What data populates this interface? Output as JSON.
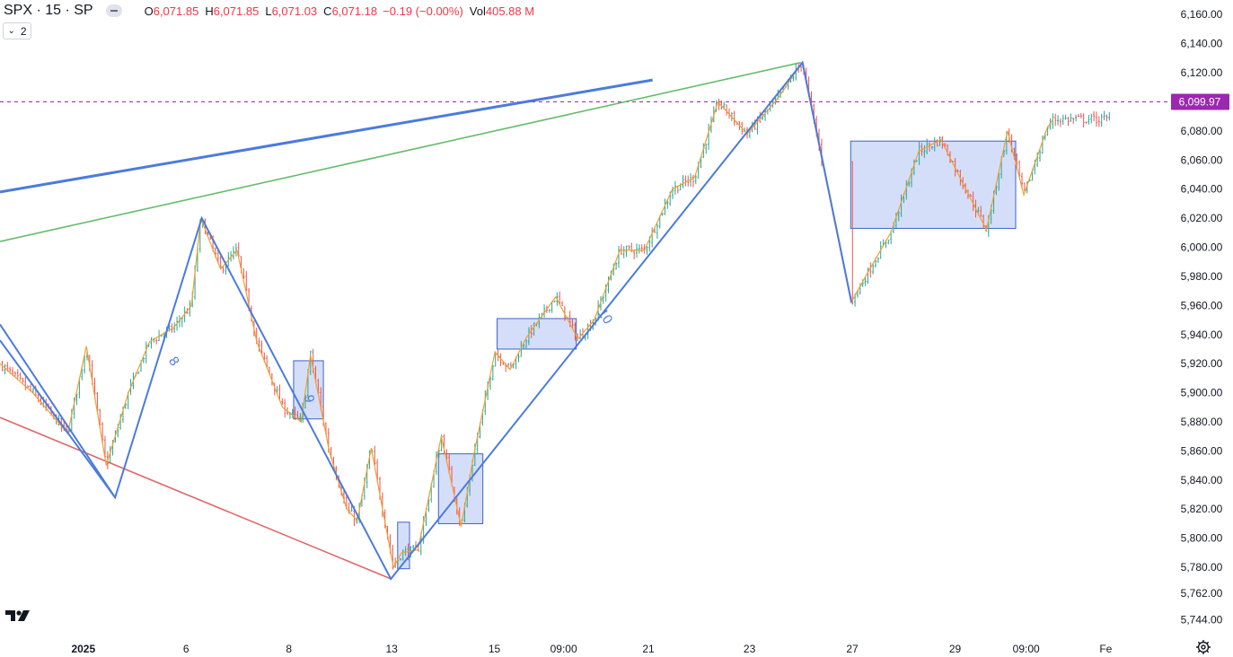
{
  "legend": {
    "symbol": "SPX · 15 · SP",
    "o_label": "O",
    "o_value": "6,071.85",
    "h_label": "H",
    "h_value": "6,071.85",
    "l_label": "L",
    "l_value": "6,071.03",
    "c_label": "C",
    "c_value": "6,071.18",
    "change": "−0.19 (−0.00%)",
    "vol_label": "Vol",
    "vol_value": "405.88 M"
  },
  "indicator_count": "2",
  "price_label": "6,099.97",
  "colors": {
    "up": "#26a69a",
    "down": "#ef5350",
    "zigzag_blue": "#4b7bdc",
    "zigzag_orange": "#f0a030",
    "trend_green": "#66bb6a",
    "trend_red": "#e06666",
    "box_fill": "#c7d3f7",
    "box_stroke": "#3d63c8",
    "price_line": "#9c27b0"
  },
  "chart_data": {
    "type": "candlestick",
    "symbol": "SPX",
    "interval": "15",
    "ylim": [
      5735,
      6170
    ],
    "y_ticks": [
      "6,160.00",
      "6,140.00",
      "6,120.00",
      "6,100.00",
      "6,080.00",
      "6,060.00",
      "6,040.00",
      "6,020.00",
      "6,000.00",
      "5,980.00",
      "5,960.00",
      "5,940.00",
      "5,920.00",
      "5,900.00",
      "5,880.00",
      "5,860.00",
      "5,840.00",
      "5,820.00",
      "5,800.00",
      "5,780.00",
      "5,762.00",
      "5,744.00"
    ],
    "x_ticks": [
      {
        "label": "2025",
        "pos": 0.0714,
        "bold": true
      },
      {
        "label": "6",
        "pos": 0.1594
      },
      {
        "label": "8",
        "pos": 0.2475
      },
      {
        "label": "13",
        "pos": 0.3355
      },
      {
        "label": "15",
        "pos": 0.4235
      },
      {
        "label": "09:00",
        "pos": 0.4828
      },
      {
        "label": "21",
        "pos": 0.5554
      },
      {
        "label": "23",
        "pos": 0.642
      },
      {
        "label": "27",
        "pos": 0.73
      },
      {
        "label": "29",
        "pos": 0.8181
      },
      {
        "label": "09:00",
        "pos": 0.879
      },
      {
        "label": "Fe",
        "pos": 0.9472
      }
    ],
    "price_line": 6099.97,
    "last_close": 6071.18,
    "swing_path": [
      [
        0.0,
        5936
      ],
      [
        0.0986,
        5828
      ],
      [
        0.1728,
        6020
      ],
      [
        0.3348,
        5772
      ],
      [
        0.6874,
        6127
      ],
      [
        0.7294,
        5962
      ]
    ],
    "zigzag_path": [
      [
        0.0,
        5920
      ],
      [
        0.028,
        5900
      ],
      [
        0.058,
        5872
      ],
      [
        0.074,
        5932
      ],
      [
        0.091,
        5850
      ],
      [
        0.11,
        5900
      ],
      [
        0.128,
        5935
      ],
      [
        0.149,
        5945
      ],
      [
        0.164,
        5960
      ],
      [
        0.172,
        6020
      ],
      [
        0.189,
        5985
      ],
      [
        0.203,
        5998
      ],
      [
        0.22,
        5935
      ],
      [
        0.242,
        5890
      ],
      [
        0.258,
        5880
      ],
      [
        0.266,
        5926
      ],
      [
        0.282,
        5860
      ],
      [
        0.297,
        5820
      ],
      [
        0.306,
        5812
      ],
      [
        0.318,
        5862
      ],
      [
        0.337,
        5780
      ],
      [
        0.344,
        5790
      ],
      [
        0.358,
        5792
      ],
      [
        0.378,
        5870
      ],
      [
        0.395,
        5808
      ],
      [
        0.406,
        5858
      ],
      [
        0.424,
        5928
      ],
      [
        0.437,
        5916
      ],
      [
        0.451,
        5938
      ],
      [
        0.476,
        5966
      ],
      [
        0.495,
        5937
      ],
      [
        0.509,
        5950
      ],
      [
        0.531,
        5998
      ],
      [
        0.552,
        5998
      ],
      [
        0.576,
        6040
      ],
      [
        0.595,
        6048
      ],
      [
        0.615,
        6100
      ],
      [
        0.64,
        6078
      ],
      [
        0.666,
        6102
      ],
      [
        0.687,
        6127
      ],
      [
        0.729,
        5962
      ],
      [
        0.745,
        5985
      ],
      [
        0.763,
        6010
      ],
      [
        0.787,
        6066
      ],
      [
        0.806,
        6074
      ],
      [
        0.826,
        6042
      ],
      [
        0.845,
        6012
      ],
      [
        0.863,
        6080
      ],
      [
        0.877,
        6036
      ],
      [
        0.897,
        6082
      ],
      [
        0.902,
        6088
      ]
    ],
    "trend_lines": [
      {
        "name": "blue-upper",
        "points": [
          [
            0.0,
            6038
          ],
          [
            0.559,
            6115
          ]
        ]
      },
      {
        "name": "green-upper",
        "points": [
          [
            0.0,
            6004
          ],
          [
            0.686,
            6127
          ]
        ]
      },
      {
        "name": "red-lower",
        "points": [
          [
            0.0,
            5883
          ],
          [
            0.335,
            5772
          ]
        ]
      }
    ],
    "boxes": [
      {
        "x0": 0.2515,
        "x1": 0.277,
        "y0": 5922,
        "y1": 5882
      },
      {
        "x0": 0.3406,
        "x1": 0.3508,
        "y0": 5811,
        "y1": 5779
      },
      {
        "x0": 0.3756,
        "x1": 0.4136,
        "y0": 5858,
        "y1": 5810
      },
      {
        "x0": 0.4258,
        "x1": 0.4936,
        "y0": 5951,
        "y1": 5930
      },
      {
        "x0": 0.7287,
        "x1": 0.87,
        "y0": 6073,
        "y1": 6013
      }
    ],
    "wave_labels": [
      {
        "text": "8",
        "pos": 0.1441,
        "y": 5922
      },
      {
        "text": "9",
        "pos": 0.2607,
        "y": 5898
      },
      {
        "text": "10",
        "pos": 0.5117,
        "y": 5955
      }
    ]
  }
}
